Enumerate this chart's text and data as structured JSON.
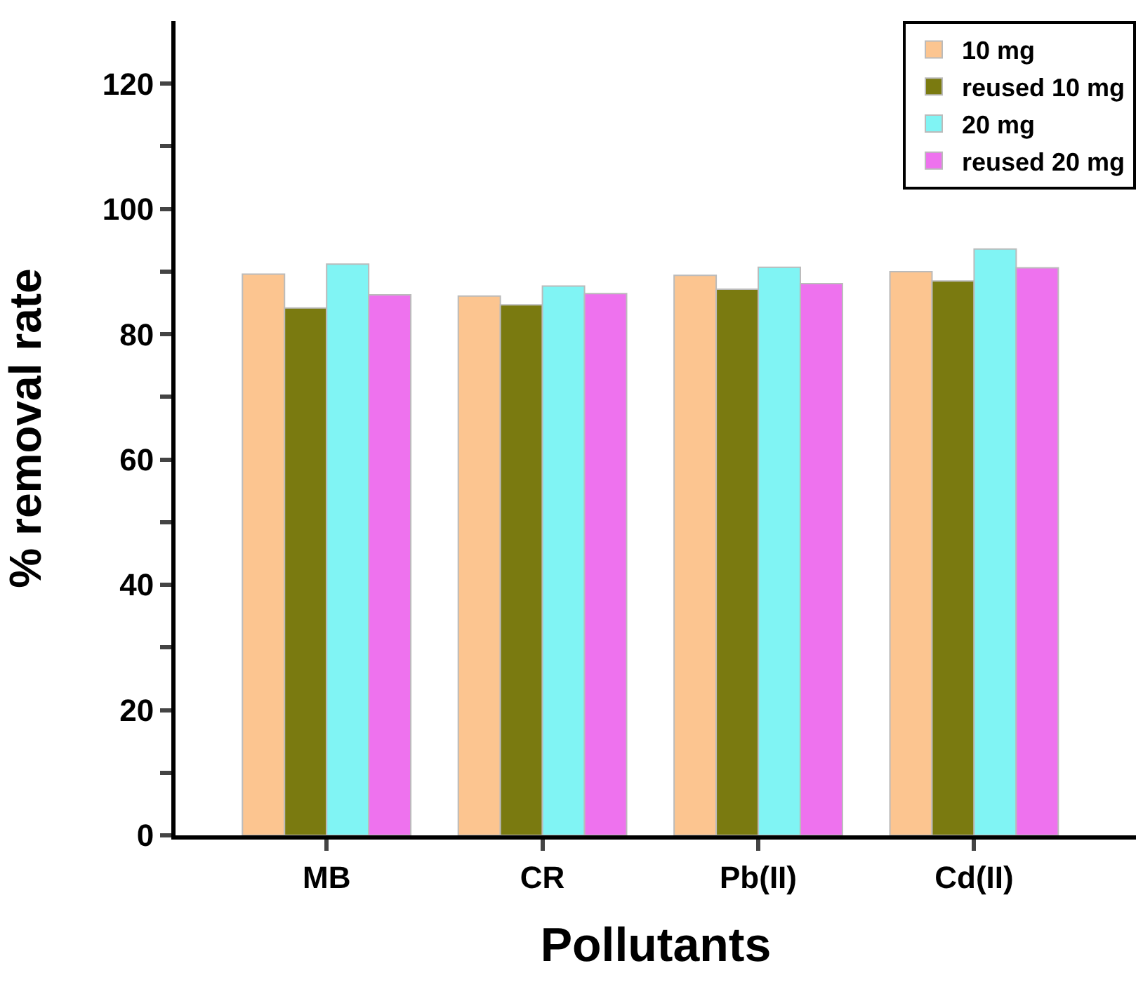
{
  "chart_data": {
    "type": "bar",
    "xlabel": "Pollutants",
    "ylabel": "% removal rate",
    "categories": [
      "MB",
      "CR",
      "Pb(II)",
      "Cd(II)"
    ],
    "series": [
      {
        "name": "10 mg",
        "color": "#fcc590",
        "values": [
          89.6,
          86.1,
          89.4,
          90.0
        ]
      },
      {
        "name": "reused 10 mg",
        "color": "#7a7a10",
        "values": [
          84.2,
          84.7,
          87.2,
          88.5
        ]
      },
      {
        "name": "20 mg",
        "color": "#80f4f4",
        "values": [
          91.2,
          87.7,
          90.7,
          93.6
        ]
      },
      {
        "name": "reused 20 mg",
        "color": "#ee72ee",
        "values": [
          86.3,
          86.5,
          88.1,
          90.6
        ]
      }
    ],
    "ylim": [
      0,
      130
    ],
    "yticks": [
      0,
      {
        "value": 10,
        "label": null
      },
      20,
      {
        "value": 30,
        "label": null
      },
      40,
      {
        "value": 50,
        "label": null
      },
      60,
      {
        "value": 70,
        "label": null
      },
      80,
      {
        "value": 90,
        "label": null
      },
      100,
      {
        "value": 110,
        "label": null
      },
      120
    ],
    "legend": "top right"
  }
}
